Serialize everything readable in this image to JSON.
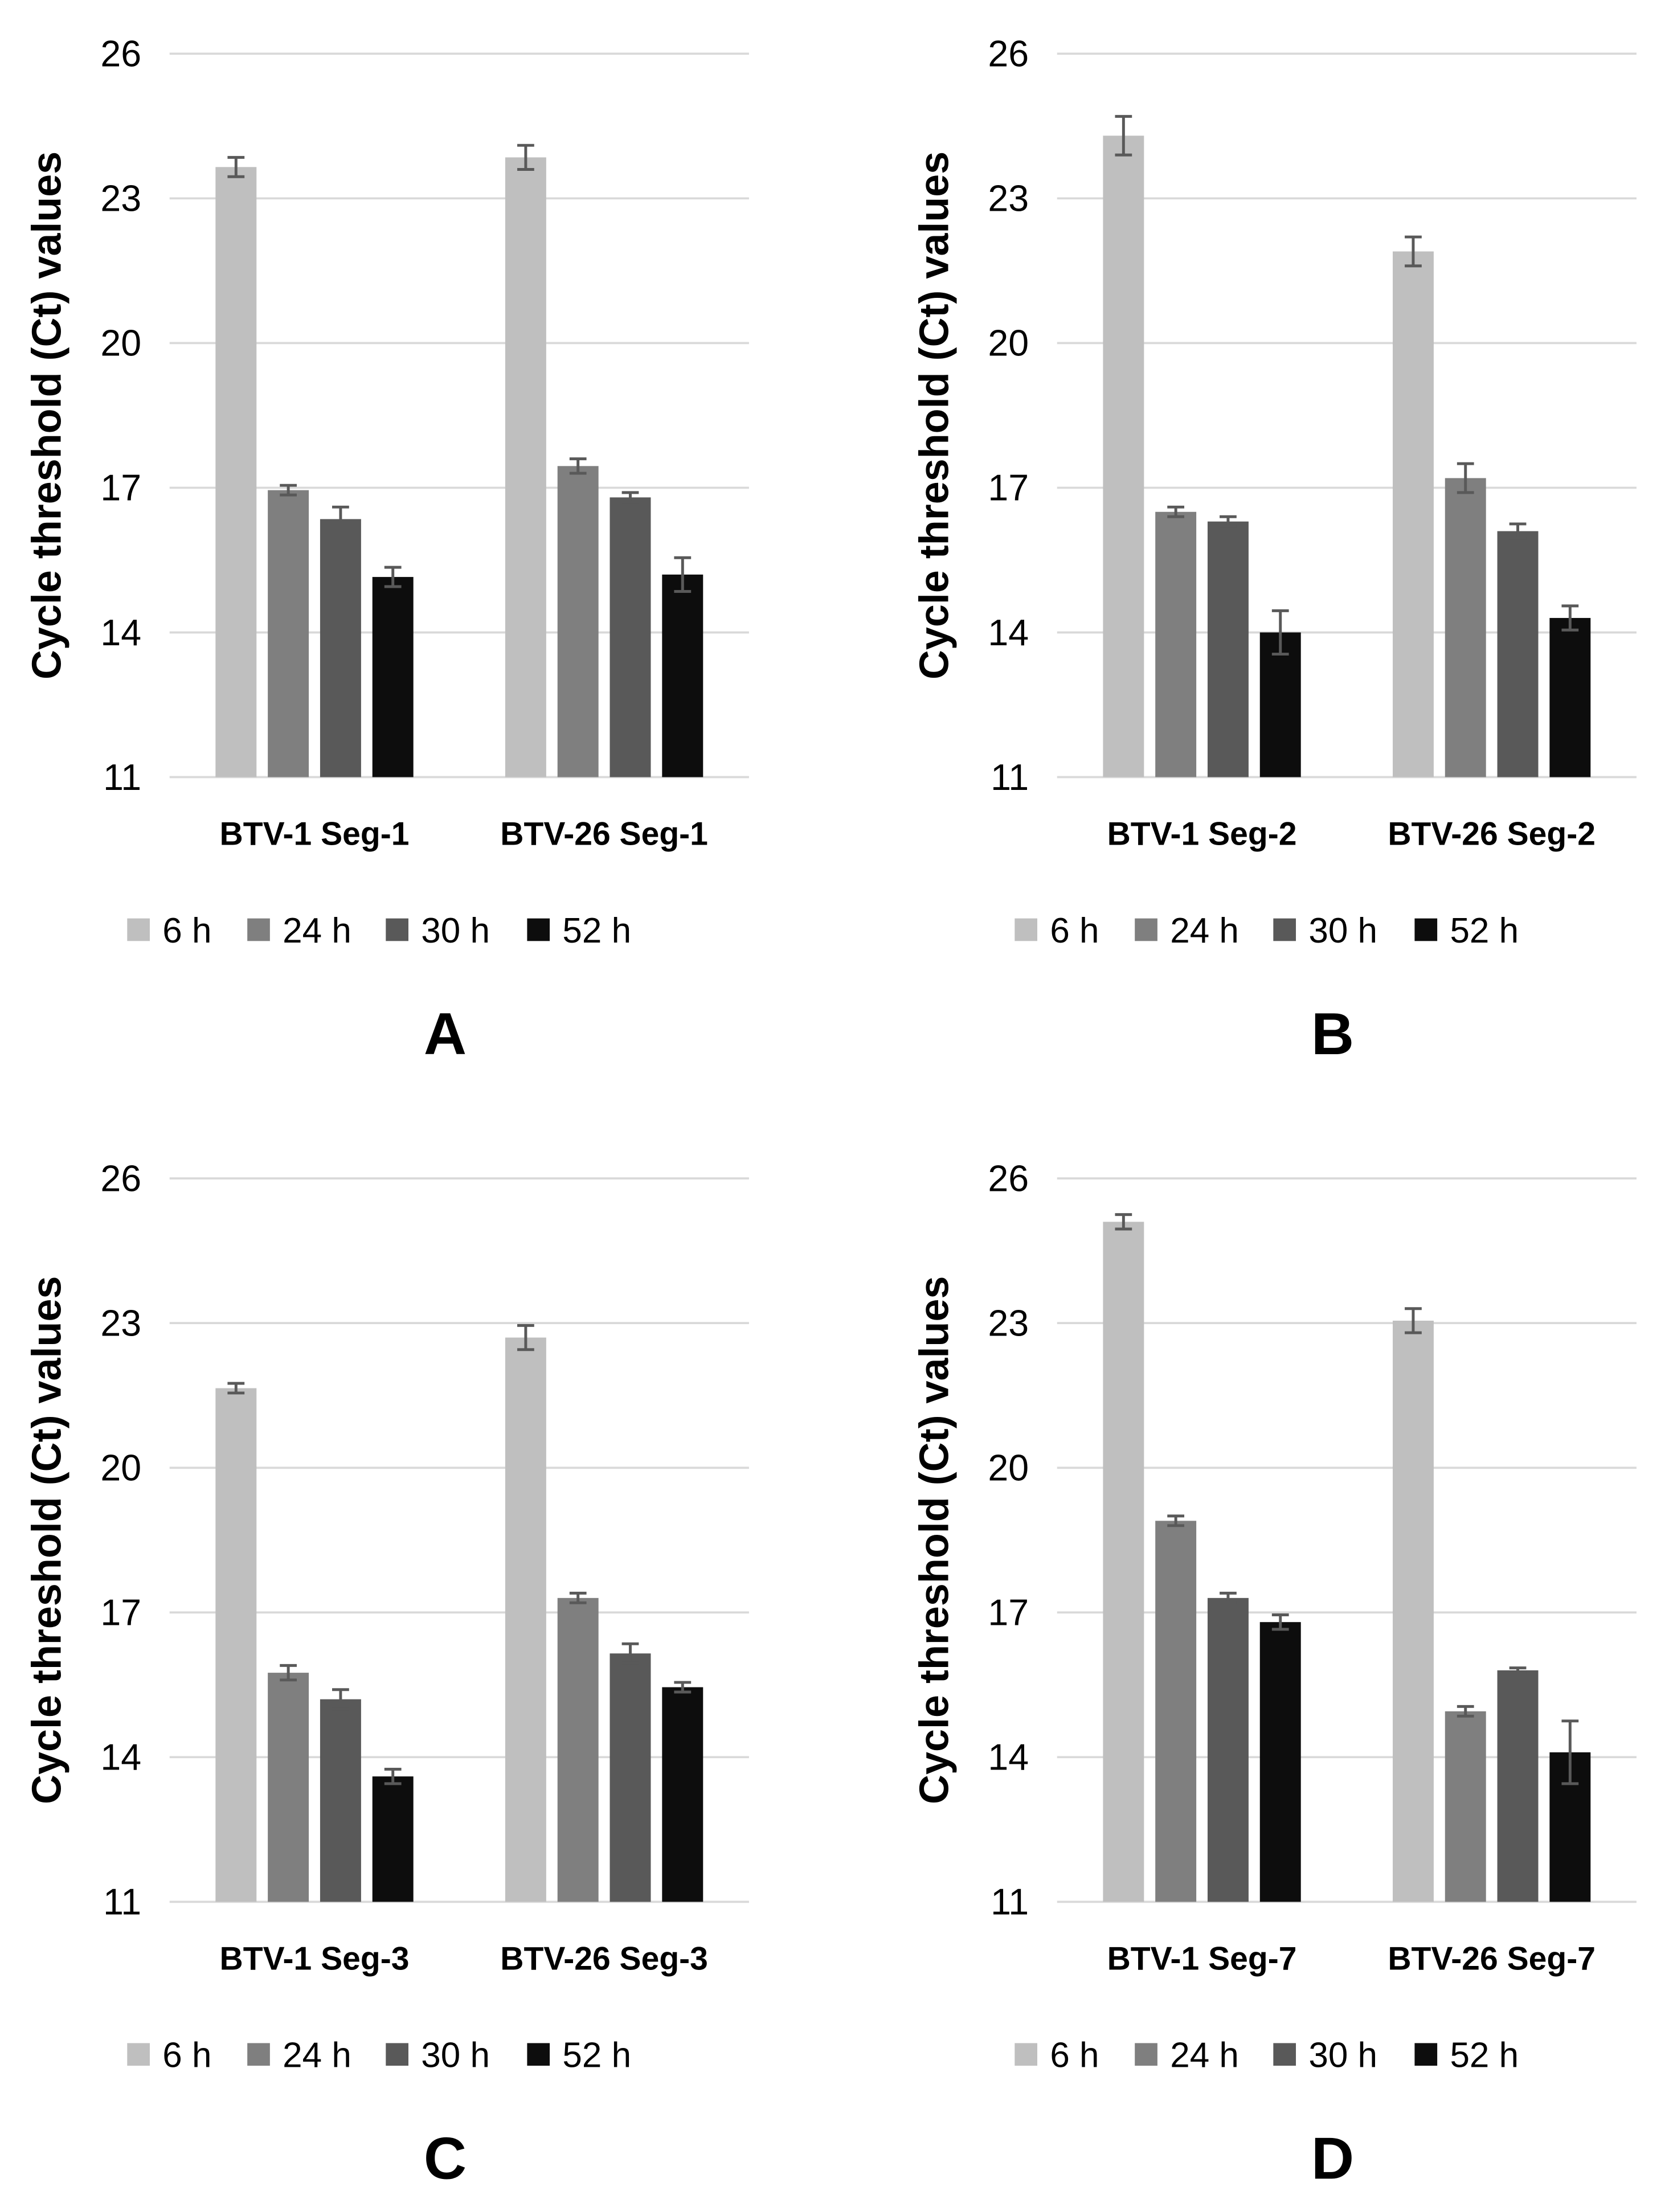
{
  "figure": {
    "y_axis_label": "Cycle threshold (Ct) values",
    "legend": [
      "6 h",
      "24 h",
      "30 h",
      "52 h"
    ],
    "colors": [
      "#bfbfbf",
      "#7f7f7f",
      "#595959",
      "#0d0d0d"
    ],
    "error_bar_color": "#595959",
    "grid_color": "#d9d9d9"
  },
  "chart_data": [
    {
      "panel": "A",
      "type": "bar",
      "categories": [
        "BTV-1 Seg-1",
        "BTV-26 Seg-1"
      ],
      "ylim": [
        11,
        26
      ],
      "yticks": [
        11,
        14,
        17,
        20,
        23,
        26
      ],
      "grid": true,
      "legend_position": "bottom",
      "ylabel": "Cycle threshold (Ct) values",
      "series": [
        {
          "name": "6 h",
          "values": [
            23.65,
            23.85
          ],
          "errors": [
            0.2,
            0.25
          ]
        },
        {
          "name": "24 h",
          "values": [
            16.95,
            17.45
          ],
          "errors": [
            0.1,
            0.15
          ]
        },
        {
          "name": "30 h",
          "values": [
            16.35,
            16.8
          ],
          "errors": [
            0.25,
            0.1
          ]
        },
        {
          "name": "52 h",
          "values": [
            15.15,
            15.2
          ],
          "errors": [
            0.2,
            0.35
          ]
        }
      ]
    },
    {
      "panel": "B",
      "type": "bar",
      "categories": [
        "BTV-1 Seg-2",
        "BTV-26 Seg-2"
      ],
      "ylim": [
        11,
        26
      ],
      "yticks": [
        11,
        14,
        17,
        20,
        23,
        26
      ],
      "grid": true,
      "legend_position": "bottom",
      "ylabel": "Cycle threshold (Ct) values",
      "series": [
        {
          "name": "6 h",
          "values": [
            24.3,
            21.9
          ],
          "errors": [
            0.4,
            0.3
          ]
        },
        {
          "name": "24 h",
          "values": [
            16.5,
            17.2
          ],
          "errors": [
            0.1,
            0.3
          ]
        },
        {
          "name": "30 h",
          "values": [
            16.3,
            16.1
          ],
          "errors": [
            0.1,
            0.15
          ]
        },
        {
          "name": "52 h",
          "values": [
            14.0,
            14.3
          ],
          "errors": [
            0.45,
            0.25
          ]
        }
      ]
    },
    {
      "panel": "C",
      "type": "bar",
      "categories": [
        "BTV-1 Seg-3",
        "BTV-26 Seg-3"
      ],
      "ylim": [
        11,
        26
      ],
      "yticks": [
        11,
        14,
        17,
        20,
        23,
        26
      ],
      "grid": true,
      "legend_position": "bottom",
      "ylabel": "Cycle threshold (Ct) values",
      "series": [
        {
          "name": "6 h",
          "values": [
            21.65,
            22.7
          ],
          "errors": [
            0.1,
            0.25
          ]
        },
        {
          "name": "24 h",
          "values": [
            15.75,
            17.3
          ],
          "errors": [
            0.15,
            0.1
          ]
        },
        {
          "name": "30 h",
          "values": [
            15.2,
            16.15
          ],
          "errors": [
            0.2,
            0.2
          ]
        },
        {
          "name": "52 h",
          "values": [
            13.6,
            15.45
          ],
          "errors": [
            0.15,
            0.1
          ]
        }
      ]
    },
    {
      "panel": "D",
      "type": "bar",
      "categories": [
        "BTV-1 Seg-7",
        "BTV-26 Seg-7"
      ],
      "ylim": [
        11,
        26
      ],
      "yticks": [
        11,
        14,
        17,
        20,
        23,
        26
      ],
      "grid": true,
      "legend_position": "bottom",
      "ylabel": "Cycle threshold (Ct) values",
      "series": [
        {
          "name": "6 h",
          "values": [
            25.1,
            23.05
          ],
          "errors": [
            0.15,
            0.25
          ]
        },
        {
          "name": "24 h",
          "values": [
            18.9,
            14.95
          ],
          "errors": [
            0.1,
            0.1
          ]
        },
        {
          "name": "30 h",
          "values": [
            17.3,
            15.8
          ],
          "errors": [
            0.1,
            0.05
          ]
        },
        {
          "name": "52 h",
          "values": [
            16.8,
            14.1
          ],
          "errors": [
            0.15,
            0.65
          ]
        }
      ]
    }
  ]
}
